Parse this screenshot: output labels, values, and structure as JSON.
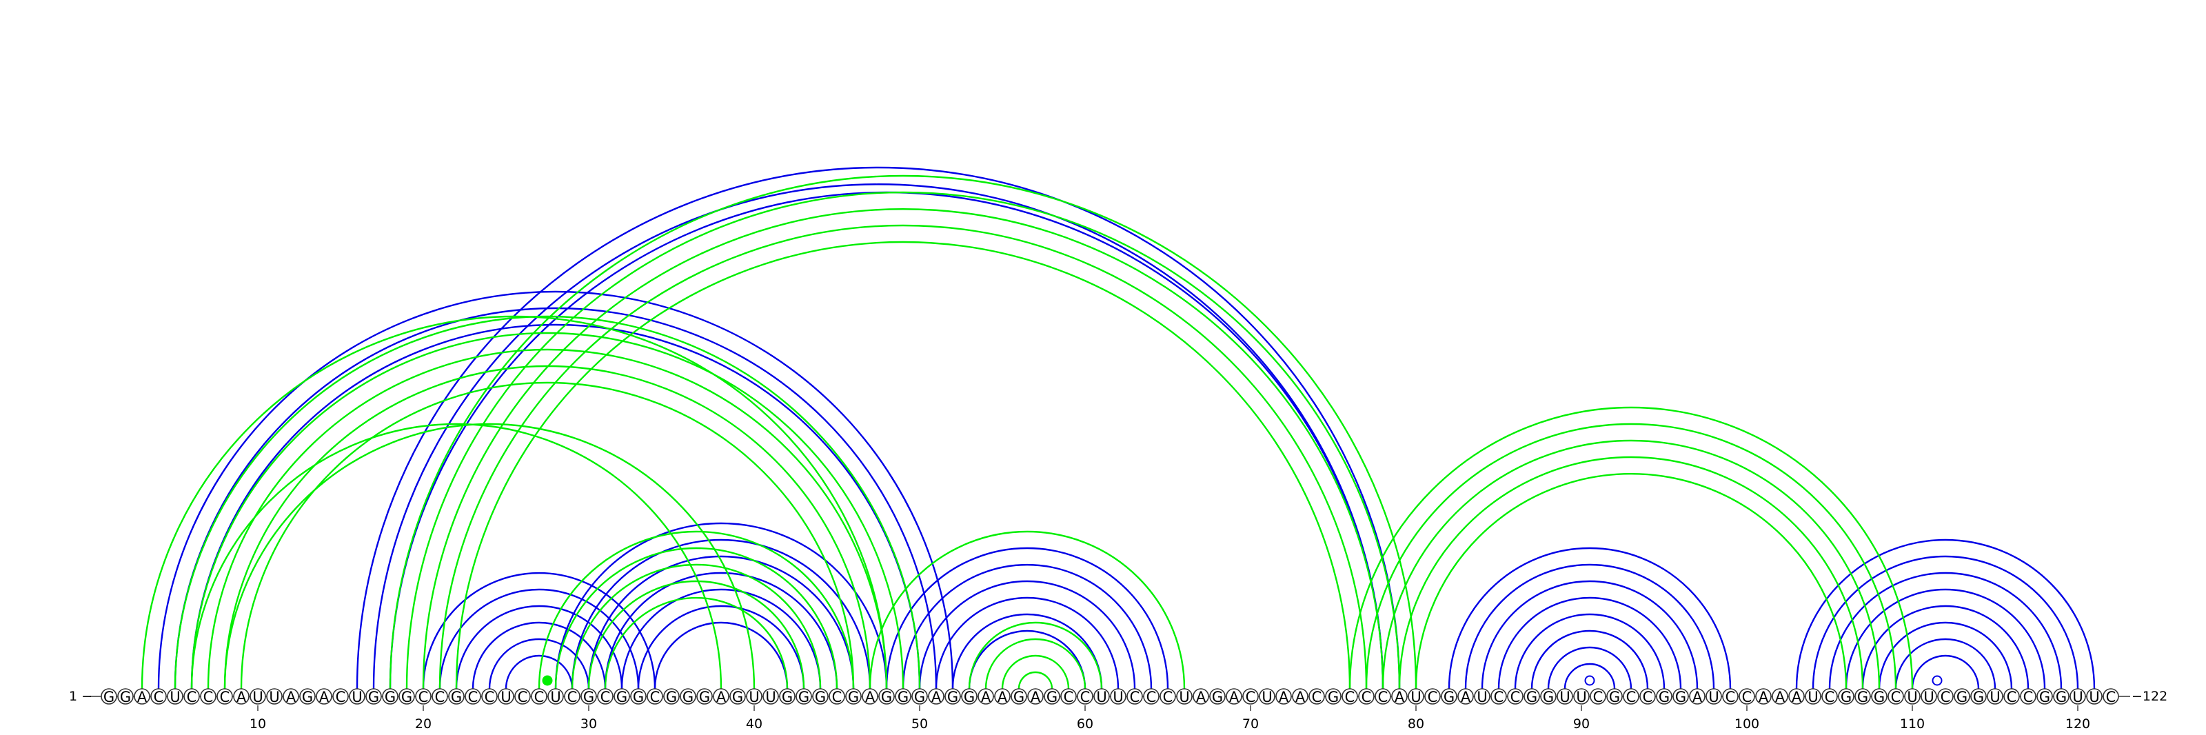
{
  "diagram": {
    "sequence": "GGACUCCCAUUAGACUGGGCCGCCUCCUCGCGGCGGGAGUUGGGCGAGGGAGGAAGAGCCUUCCCUAGACUAACGCCCAUCGAUCCGGUUCGCCGGAUCCAAAUCGGGCUUCGGUCCGGUUC",
    "start_label": "1",
    "end_label": "122",
    "tick_labels": [
      "10",
      "20",
      "30",
      "40",
      "50",
      "60",
      "70",
      "80",
      "90",
      "100",
      "110",
      "120"
    ],
    "colors": {
      "structure_a": "#0000e6",
      "structure_b": "#00ee00"
    },
    "helices_a": [
      {
        "i": 4,
        "j": 52,
        "n": 3
      },
      {
        "i": 16,
        "j": 79,
        "n": 2
      },
      {
        "i": 18,
        "j": 78,
        "n": 1
      },
      {
        "i": 20,
        "j": 34,
        "n": 6
      },
      {
        "i": 28,
        "j": 48,
        "n": 7
      },
      {
        "i": 48,
        "j": 65,
        "n": 6
      },
      {
        "i": 82,
        "j": 99,
        "n": 8
      },
      {
        "i": 103,
        "j": 121,
        "n": 8
      }
    ],
    "helices_b": [
      {
        "i": 3,
        "j": 48,
        "n": 1
      },
      {
        "i": 5,
        "j": 50,
        "n": 5
      },
      {
        "i": 6,
        "j": 38,
        "n": 1
      },
      {
        "i": 8,
        "j": 40,
        "n": 1
      },
      {
        "i": 18,
        "j": 80,
        "n": 5
      },
      {
        "i": 27,
        "j": 46,
        "n": 5
      },
      {
        "i": 47,
        "j": 66,
        "n": 1
      },
      {
        "i": 53,
        "j": 61,
        "n": 4
      },
      {
        "i": 76,
        "j": 110,
        "n": 5
      }
    ],
    "hairpin_markers_a": [
      {
        "i": 90,
        "j": 91
      },
      {
        "i": 111,
        "j": 112
      }
    ],
    "hairpin_markers_b": [
      {
        "i": 27,
        "j": 28
      }
    ]
  }
}
